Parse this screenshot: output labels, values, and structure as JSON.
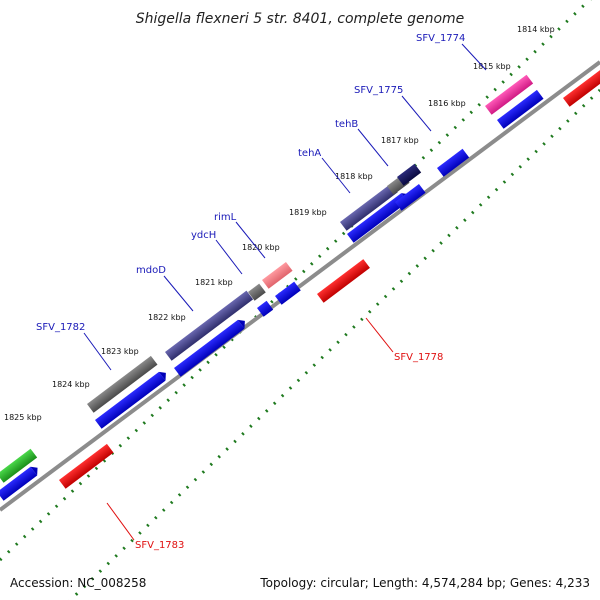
{
  "title": "Shigella flexneri 5 str. 8401, complete genome",
  "accession": "Accession: NC_008258",
  "summary": "Topology: circular; Length: 4,574,284 bp; Genes: 4,233",
  "ruler_ticks": [
    "1814 kbp",
    "1815 kbp",
    "1816 kbp",
    "1817 kbp",
    "1818 kbp",
    "1819 kbp",
    "1820 kbp",
    "1821 kbp",
    "1822 kbp",
    "1823 kbp",
    "1824 kbp",
    "1825 kbp"
  ],
  "gene_labels": [
    {
      "name": "SFV_1774",
      "color": "#1a1ab8"
    },
    {
      "name": "SFV_1775",
      "color": "#1a1ab8"
    },
    {
      "name": "tehB",
      "color": "#1a1ab8"
    },
    {
      "name": "tehA",
      "color": "#1a1ab8"
    },
    {
      "name": "rimL",
      "color": "#1a1ab8"
    },
    {
      "name": "ydcH",
      "color": "#1a1ab8"
    },
    {
      "name": "mdoD",
      "color": "#1a1ab8"
    },
    {
      "name": "SFV_1782",
      "color": "#1a1ab8"
    },
    {
      "name": "SFV_1778",
      "color": "#e01010"
    },
    {
      "name": "SFV_1783",
      "color": "#e01010"
    }
  ],
  "colors": {
    "forward_gene": "#0a0ae6",
    "reverse_gene": "#ee1111",
    "highlight_magenta": "#ee2a9a",
    "highlight_pink": "#f07f86",
    "purple_gene": "#4b4a94",
    "gray_gene": "#6b6b6b",
    "green_gene": "#2db22d",
    "backbone": "#8a8a8a",
    "ruler_dots": "#1f7a1f"
  }
}
